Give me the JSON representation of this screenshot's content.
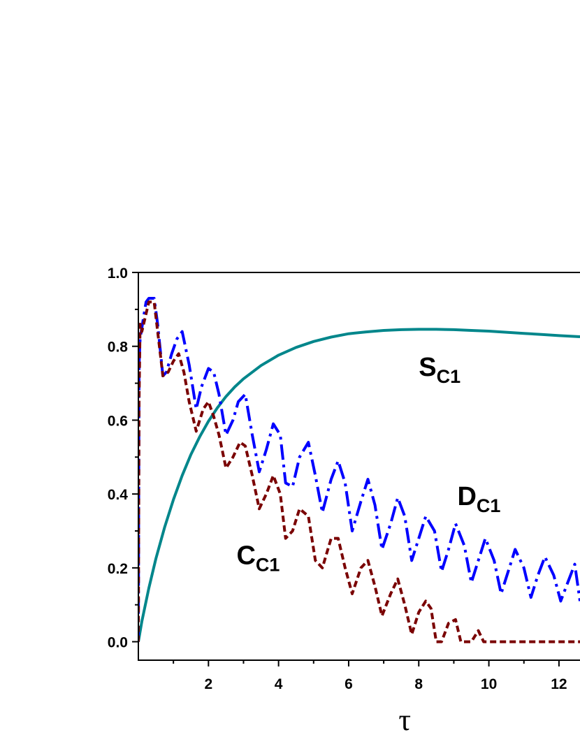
{
  "chart_data": {
    "type": "line",
    "title": "",
    "xlabel": "τ",
    "ylabel": "",
    "xlim": [
      0,
      12.6
    ],
    "ylim": [
      -0.05,
      1.0
    ],
    "x_ticks": [
      2,
      4,
      6,
      8,
      10,
      12
    ],
    "x_tick_labels": [
      "2",
      "4",
      "6",
      "8",
      "10",
      "12"
    ],
    "x_minor_ticks": [
      1,
      3,
      5,
      7,
      9,
      11
    ],
    "y_ticks": [
      0.0,
      0.2,
      0.4,
      0.6,
      0.8,
      1.0
    ],
    "y_tick_labels": [
      "0.0",
      "0.2",
      "0.4",
      "0.6",
      "0.8",
      "1.0"
    ],
    "y_minor_ticks": [
      0.1,
      0.3,
      0.5,
      0.7,
      0.9
    ],
    "grid": false,
    "legend": "none",
    "series": [
      {
        "name": "S",
        "subscript": "C1",
        "color": "#00868b",
        "style": "solid",
        "x": [
          0,
          0.1,
          0.2,
          0.3,
          0.5,
          0.75,
          1.0,
          1.25,
          1.5,
          1.75,
          2.0,
          2.25,
          2.5,
          2.75,
          3.0,
          3.5,
          4.0,
          4.5,
          5.0,
          5.5,
          6.0,
          6.5,
          7.0,
          7.5,
          8.0,
          8.5,
          9.0,
          9.5,
          10.0,
          10.5,
          11.0,
          11.5,
          12.0,
          12.6
        ],
        "y": [
          0.0,
          0.055,
          0.1,
          0.145,
          0.225,
          0.31,
          0.385,
          0.45,
          0.507,
          0.555,
          0.597,
          0.633,
          0.664,
          0.69,
          0.712,
          0.748,
          0.776,
          0.797,
          0.813,
          0.825,
          0.834,
          0.839,
          0.843,
          0.845,
          0.846,
          0.846,
          0.845,
          0.843,
          0.841,
          0.838,
          0.835,
          0.832,
          0.829,
          0.826
        ]
      },
      {
        "name": "D",
        "subscript": "C1",
        "color": "#0000ff",
        "style": "dash-dot",
        "x": [
          0,
          0.02,
          0.05,
          0.1,
          0.22,
          0.3,
          0.45,
          0.55,
          0.7,
          0.8,
          0.95,
          1.1,
          1.25,
          1.45,
          1.65,
          1.8,
          2.0,
          2.15,
          2.3,
          2.5,
          2.7,
          2.85,
          3.05,
          3.25,
          3.45,
          3.65,
          3.85,
          4.05,
          4.2,
          4.4,
          4.6,
          4.85,
          5.05,
          5.25,
          5.5,
          5.7,
          5.9,
          6.1,
          6.35,
          6.55,
          6.75,
          6.95,
          7.2,
          7.4,
          7.6,
          7.8,
          8.0,
          8.2,
          8.45,
          8.65,
          8.85,
          9.05,
          9.3,
          9.5,
          9.7,
          9.9,
          10.15,
          10.35,
          10.55,
          10.75,
          11.0,
          11.2,
          11.4,
          11.6,
          11.85,
          12.05,
          12.25,
          12.45,
          12.6
        ],
        "y": [
          0.0,
          0.75,
          0.82,
          0.85,
          0.92,
          0.93,
          0.93,
          0.86,
          0.72,
          0.73,
          0.78,
          0.82,
          0.84,
          0.75,
          0.63,
          0.69,
          0.74,
          0.73,
          0.67,
          0.56,
          0.6,
          0.65,
          0.67,
          0.56,
          0.46,
          0.52,
          0.59,
          0.56,
          0.43,
          0.42,
          0.5,
          0.54,
          0.45,
          0.35,
          0.44,
          0.49,
          0.43,
          0.3,
          0.38,
          0.44,
          0.37,
          0.25,
          0.32,
          0.39,
          0.34,
          0.22,
          0.28,
          0.34,
          0.3,
          0.19,
          0.25,
          0.32,
          0.26,
          0.16,
          0.22,
          0.28,
          0.22,
          0.13,
          0.19,
          0.25,
          0.2,
          0.12,
          0.18,
          0.23,
          0.18,
          0.11,
          0.16,
          0.21,
          0.11
        ]
      },
      {
        "name": "C",
        "subscript": "C1",
        "color": "#7a0000",
        "style": "dashed",
        "x": [
          0,
          0.02,
          0.05,
          0.1,
          0.2,
          0.3,
          0.45,
          0.55,
          0.7,
          0.85,
          1.0,
          1.15,
          1.3,
          1.45,
          1.65,
          1.85,
          2.0,
          2.15,
          2.3,
          2.5,
          2.7,
          2.9,
          3.05,
          3.25,
          3.45,
          3.65,
          3.85,
          4.05,
          4.2,
          4.4,
          4.6,
          4.85,
          5.05,
          5.25,
          5.5,
          5.7,
          5.9,
          6.1,
          6.35,
          6.55,
          6.75,
          6.95,
          7.2,
          7.4,
          7.6,
          7.8,
          8.0,
          8.2,
          8.35,
          8.5,
          8.65,
          8.85,
          9.05,
          9.2,
          9.5,
          9.7,
          9.85,
          10.0,
          12.6
        ],
        "y": [
          0.0,
          0.65,
          0.86,
          0.84,
          0.88,
          0.92,
          0.92,
          0.84,
          0.72,
          0.73,
          0.76,
          0.78,
          0.73,
          0.65,
          0.57,
          0.63,
          0.65,
          0.61,
          0.56,
          0.47,
          0.5,
          0.54,
          0.53,
          0.45,
          0.36,
          0.4,
          0.45,
          0.4,
          0.28,
          0.3,
          0.36,
          0.34,
          0.22,
          0.2,
          0.28,
          0.28,
          0.2,
          0.13,
          0.2,
          0.22,
          0.15,
          0.07,
          0.13,
          0.17,
          0.1,
          0.02,
          0.08,
          0.11,
          0.09,
          0.0,
          0.0,
          0.05,
          0.06,
          0.0,
          0.0,
          0.03,
          0.0,
          0.0,
          0.0
        ]
      }
    ],
    "annotations": [
      {
        "main": "S",
        "sub": "C1",
        "x": 8.0,
        "y": 0.72
      },
      {
        "main": "D",
        "sub": "C1",
        "x": 9.1,
        "y": 0.37
      },
      {
        "main": "C",
        "sub": "C1",
        "x": 2.8,
        "y": 0.21
      }
    ]
  }
}
